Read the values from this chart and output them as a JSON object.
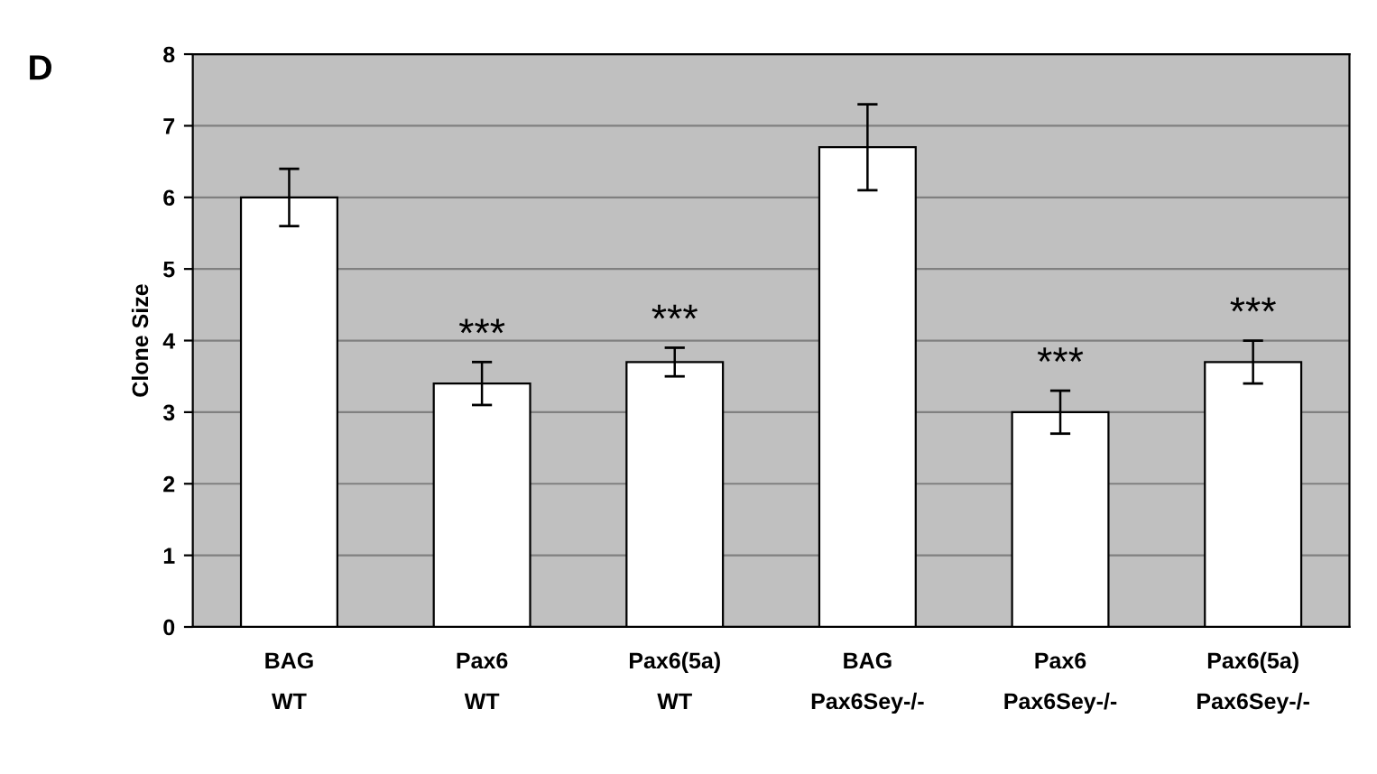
{
  "chart_data": {
    "type": "bar",
    "ylabel": "Clone Size",
    "categories": [
      "BAG\nWT",
      "Pax6\nWT",
      "Pax6(5a)\nWT",
      "BAG\nPax6Sey-/-",
      "Pax6\nPax6Sey-/-",
      "Pax6(5a)\nPax6Sey-/-"
    ],
    "values": [
      6.0,
      3.4,
      3.7,
      6.7,
      3.0,
      3.7
    ],
    "errors": [
      0.4,
      0.3,
      0.2,
      0.6,
      0.3,
      0.3
    ],
    "color": "#ffffff",
    "ylim": [
      0,
      8
    ],
    "yticks": [
      0,
      1,
      2,
      3,
      4,
      5,
      6,
      7,
      8
    ],
    "grid": "y",
    "annotations": [
      "D",
      {
        "text": "***",
        "x": "Pax6\nWT",
        "y": 3.7
      },
      {
        "text": "***",
        "x": "Pax6(5a)\nWT",
        "y": 3.9
      },
      {
        "text": "***",
        "x": "Pax6\nPax6Sey-/-",
        "y": 3.3
      },
      {
        "text": "***",
        "x": "Pax6(5a)\nPax6Sey-/-",
        "y": 4.0
      }
    ]
  }
}
